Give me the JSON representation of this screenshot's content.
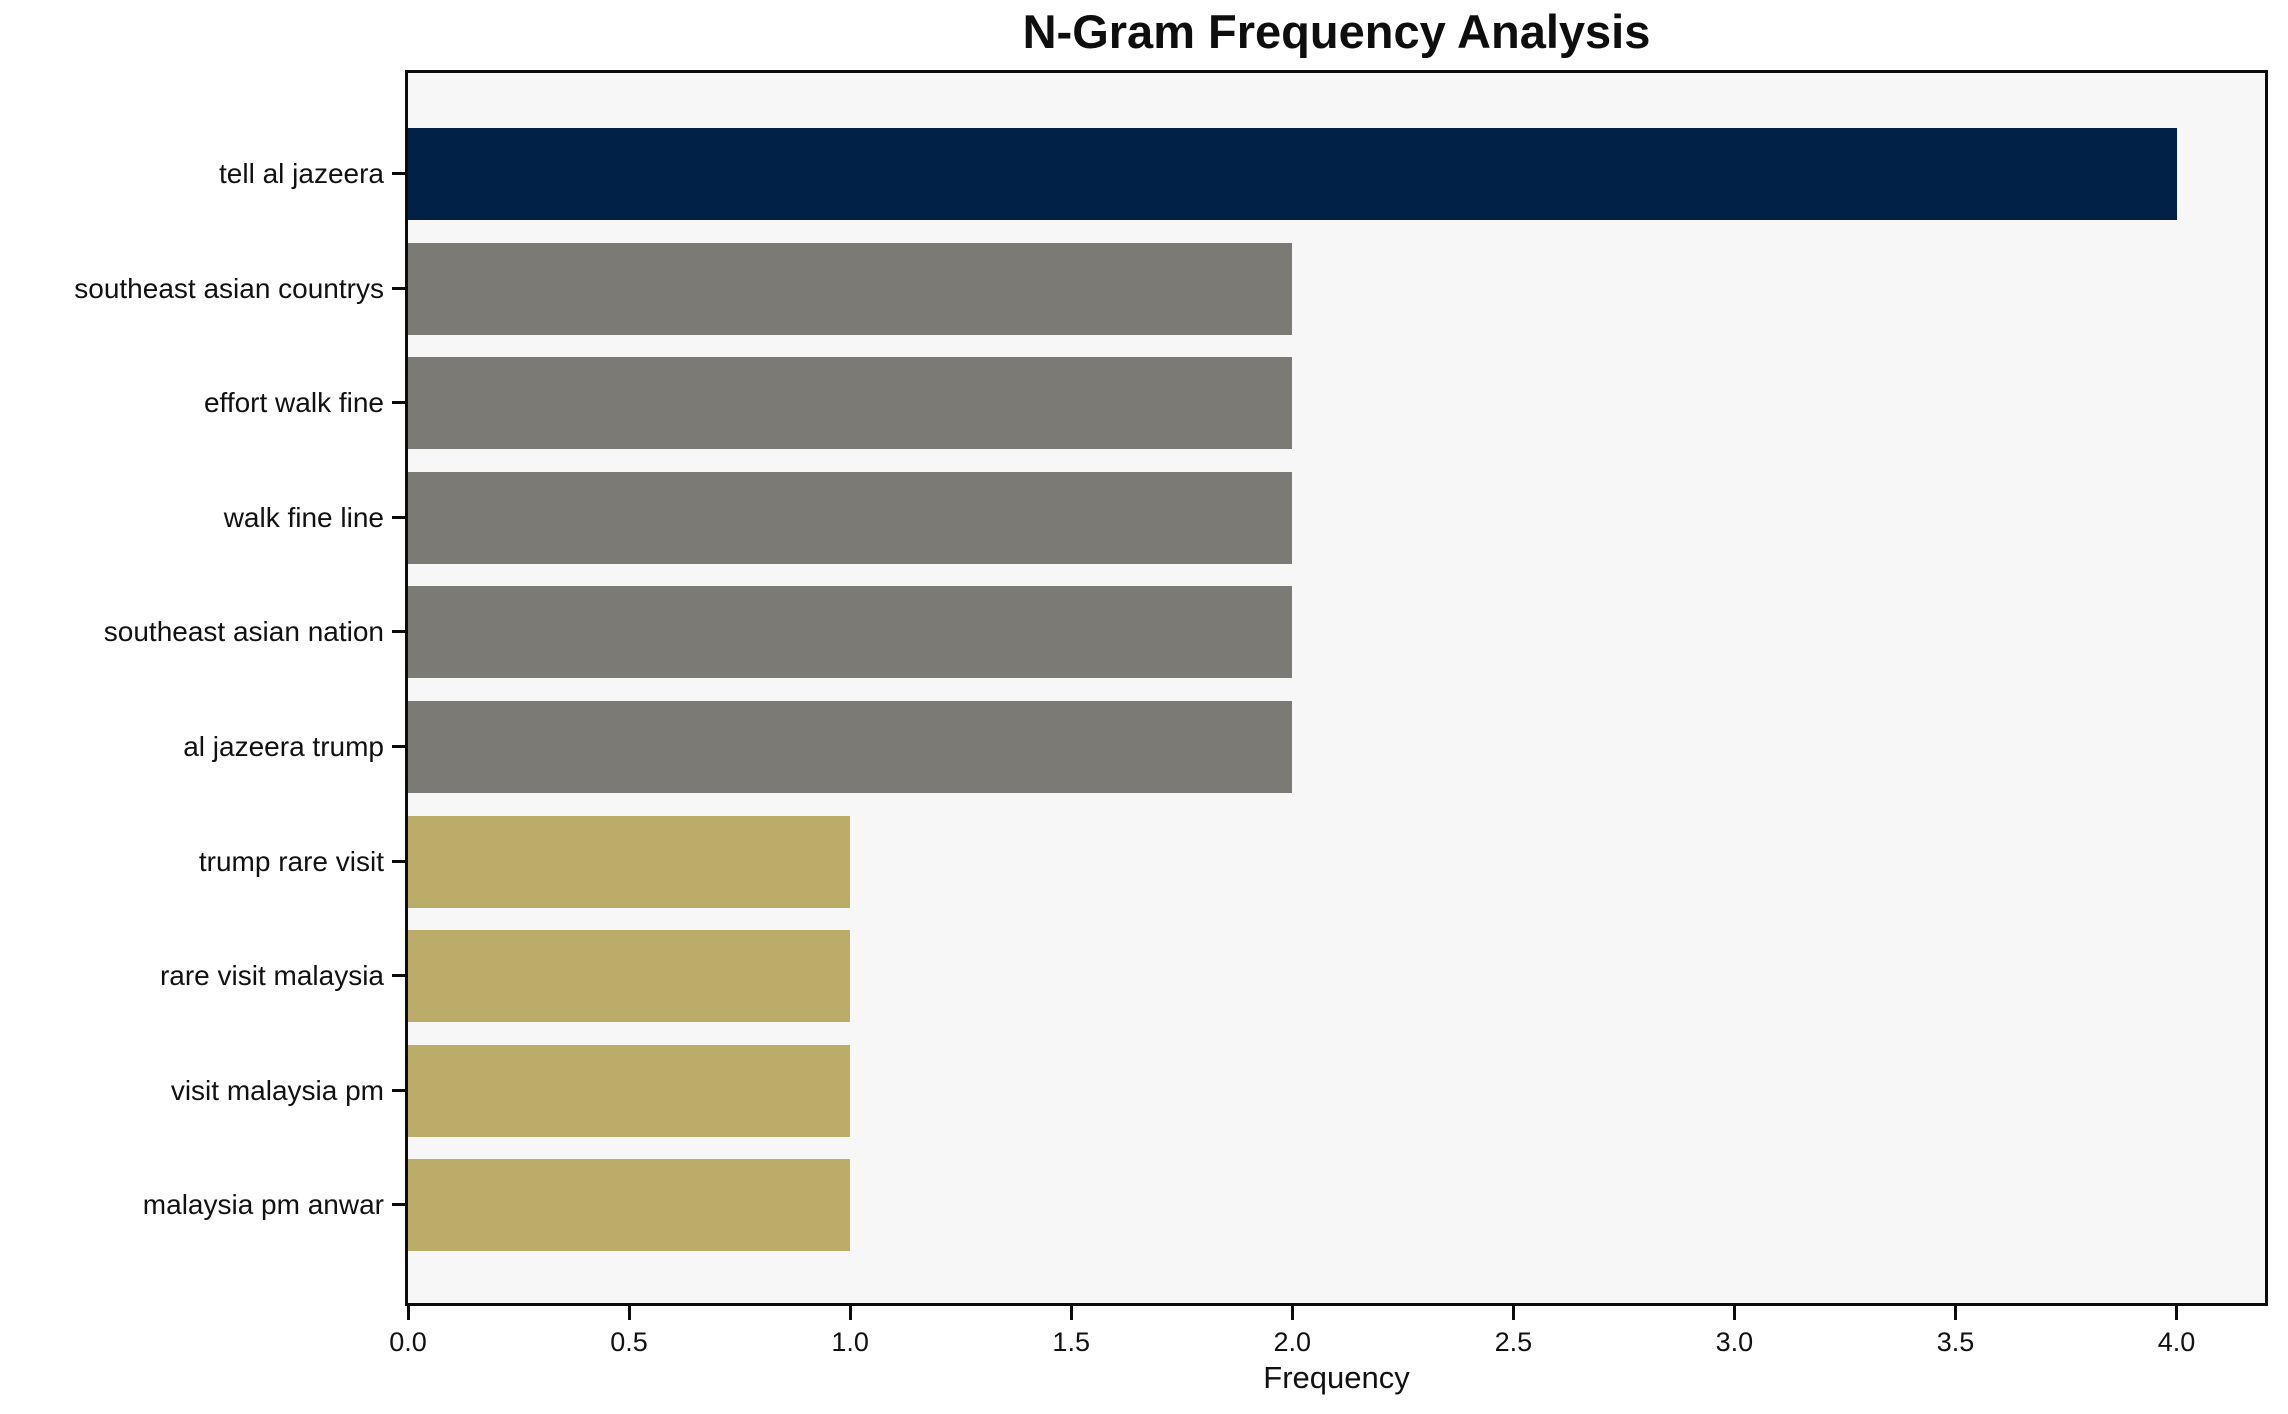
{
  "chart_data": {
    "type": "bar",
    "orientation": "horizontal",
    "title": "N-Gram Frequency Analysis",
    "xlabel": "Frequency",
    "ylabel": "",
    "categories": [
      "tell al jazeera",
      "southeast asian countrys",
      "effort walk fine",
      "walk fine line",
      "southeast asian nation",
      "al jazeera trump",
      "trump rare visit",
      "rare visit malaysia",
      "visit malaysia pm",
      "malaysia pm anwar"
    ],
    "values": [
      4,
      2,
      2,
      2,
      2,
      2,
      1,
      1,
      1,
      1
    ],
    "bar_colors": [
      "#022147",
      "#7b7a75",
      "#7b7a75",
      "#7b7a75",
      "#7b7a75",
      "#7b7a75",
      "#bbac6a",
      "#bbac6a",
      "#bbac6a",
      "#bbac6a"
    ],
    "x_ticks": [
      0.0,
      0.5,
      1.0,
      1.5,
      2.0,
      2.5,
      3.0,
      3.5,
      4.0
    ],
    "x_tick_labels": [
      "0.0",
      "0.5",
      "1.0",
      "1.5",
      "2.0",
      "2.5",
      "3.0",
      "3.5",
      "4.0"
    ],
    "xlim": [
      0,
      4.2
    ],
    "grid": false,
    "legend": null,
    "colors": {
      "navy": "#022147",
      "gray": "#7b7a75",
      "khaki": "#bbac6a",
      "plot_background": "#f7f7f7",
      "figure_background": "#ffffff",
      "axis": "#0b0b0b",
      "text": "#111111"
    }
  }
}
